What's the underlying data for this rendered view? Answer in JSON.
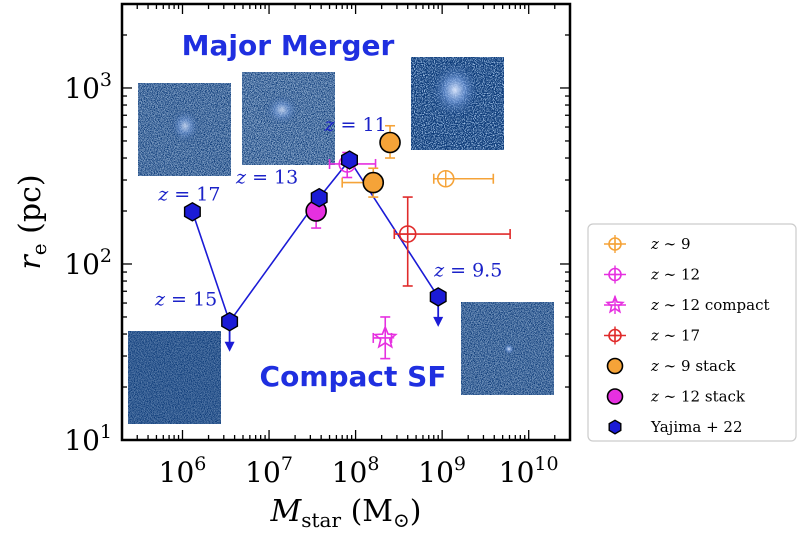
{
  "chart_data": {
    "type": "scatter",
    "xscale": "log",
    "yscale": "log",
    "xlim": [
      200000,
      30000000000
    ],
    "ylim": [
      10,
      3000
    ],
    "xlabel_main": "M",
    "xlabel_sub": "star",
    "xlabel_unit_open": " (M",
    "xlabel_unit_sub": "⊙",
    "xlabel_unit_close": ")",
    "ylabel_main": "r",
    "ylabel_sub": "e",
    "ylabel_unit": " (pc)",
    "x_ticks": [
      {
        "value": 1000000,
        "base": "10",
        "exp": "6"
      },
      {
        "value": 10000000,
        "base": "10",
        "exp": "7"
      },
      {
        "value": 100000000,
        "base": "10",
        "exp": "8"
      },
      {
        "value": 1000000000,
        "base": "10",
        "exp": "9"
      },
      {
        "value": 10000000000,
        "base": "10",
        "exp": "10"
      }
    ],
    "y_ticks": [
      {
        "value": 10,
        "base": "10",
        "exp": "1"
      },
      {
        "value": 100,
        "base": "10",
        "exp": "2"
      },
      {
        "value": 1000,
        "base": "10",
        "exp": "3"
      }
    ],
    "legend_position": "outside-right",
    "annotations": {
      "major_merger": "Major Merger",
      "compact_sf": "Compact SF",
      "z_labels": [
        {
          "text": "z = 17",
          "x": 1200000,
          "y": 230
        },
        {
          "text": "z = 13",
          "x": 9500000,
          "y": 287
        },
        {
          "text": "z = 11",
          "x": 100000000,
          "y": 570
        },
        {
          "text": "z = 15",
          "x": 1100000,
          "y": 58
        },
        {
          "text": "z = 9.5",
          "x": 2000000000,
          "y": 85
        }
      ]
    },
    "series": [
      {
        "name": "z ~ 9",
        "color": "#f5a338",
        "marker": "circle-open",
        "points": [
          {
            "x": 1100000000,
            "y": 305,
            "xerr": [
              800000000,
              3900000000
            ],
            "yerr": [
              0,
              0
            ]
          }
        ]
      },
      {
        "name": "z ~ 12",
        "color": "#e630e0",
        "marker": "circle-open",
        "points": [
          {
            "x": 80000000,
            "y": 370,
            "xerr": [
              50000000,
              170000000
            ],
            "yerr": [
              60,
              60
            ]
          }
        ]
      },
      {
        "name": "z ~ 12 compact",
        "color": "#e630e0",
        "marker": "star-open",
        "points": [
          {
            "x": 220000000,
            "y": 38,
            "xerr": [
              160000000,
              260000000
            ],
            "yerr": [
              9,
              12
            ]
          }
        ]
      },
      {
        "name": "z ~ 17",
        "color": "#e02b2b",
        "marker": "circle-open",
        "points": [
          {
            "x": 400000000,
            "y": 148,
            "xerr": [
              280000000,
              6100000000
            ],
            "yerr": [
              73,
              92
            ]
          }
        ]
      },
      {
        "name": "z ~ 9 stack",
        "color": "#f5a338",
        "marker": "circle-filled",
        "points": [
          {
            "x": 250000000,
            "y": 490,
            "xerr": [
              0,
              0
            ],
            "yerr": [
              90,
              120
            ]
          },
          {
            "x": 160000000,
            "y": 290,
            "xerr": [
              70000000,
              200000000
            ],
            "yerr": [
              50,
              60
            ]
          }
        ]
      },
      {
        "name": "z ~ 12 stack",
        "color": "#e630e0",
        "marker": "circle-filled",
        "points": [
          {
            "x": 35000000,
            "y": 200,
            "xerr": [
              0,
              0
            ],
            "yerr": [
              40,
              30
            ]
          }
        ]
      },
      {
        "name": "Yajima + 22",
        "color": "#1b1bd6",
        "marker": "hexagon",
        "connected": true,
        "points": [
          {
            "x": 1300000,
            "y": 198,
            "upper_limit": false
          },
          {
            "x": 3500000,
            "y": 47,
            "upper_limit": true
          },
          {
            "x": 38000000,
            "y": 238,
            "upper_limit": false
          },
          {
            "x": 85000000,
            "y": 390,
            "upper_limit": false
          },
          {
            "x": 900000000,
            "y": 65,
            "upper_limit": true
          }
        ]
      }
    ]
  }
}
